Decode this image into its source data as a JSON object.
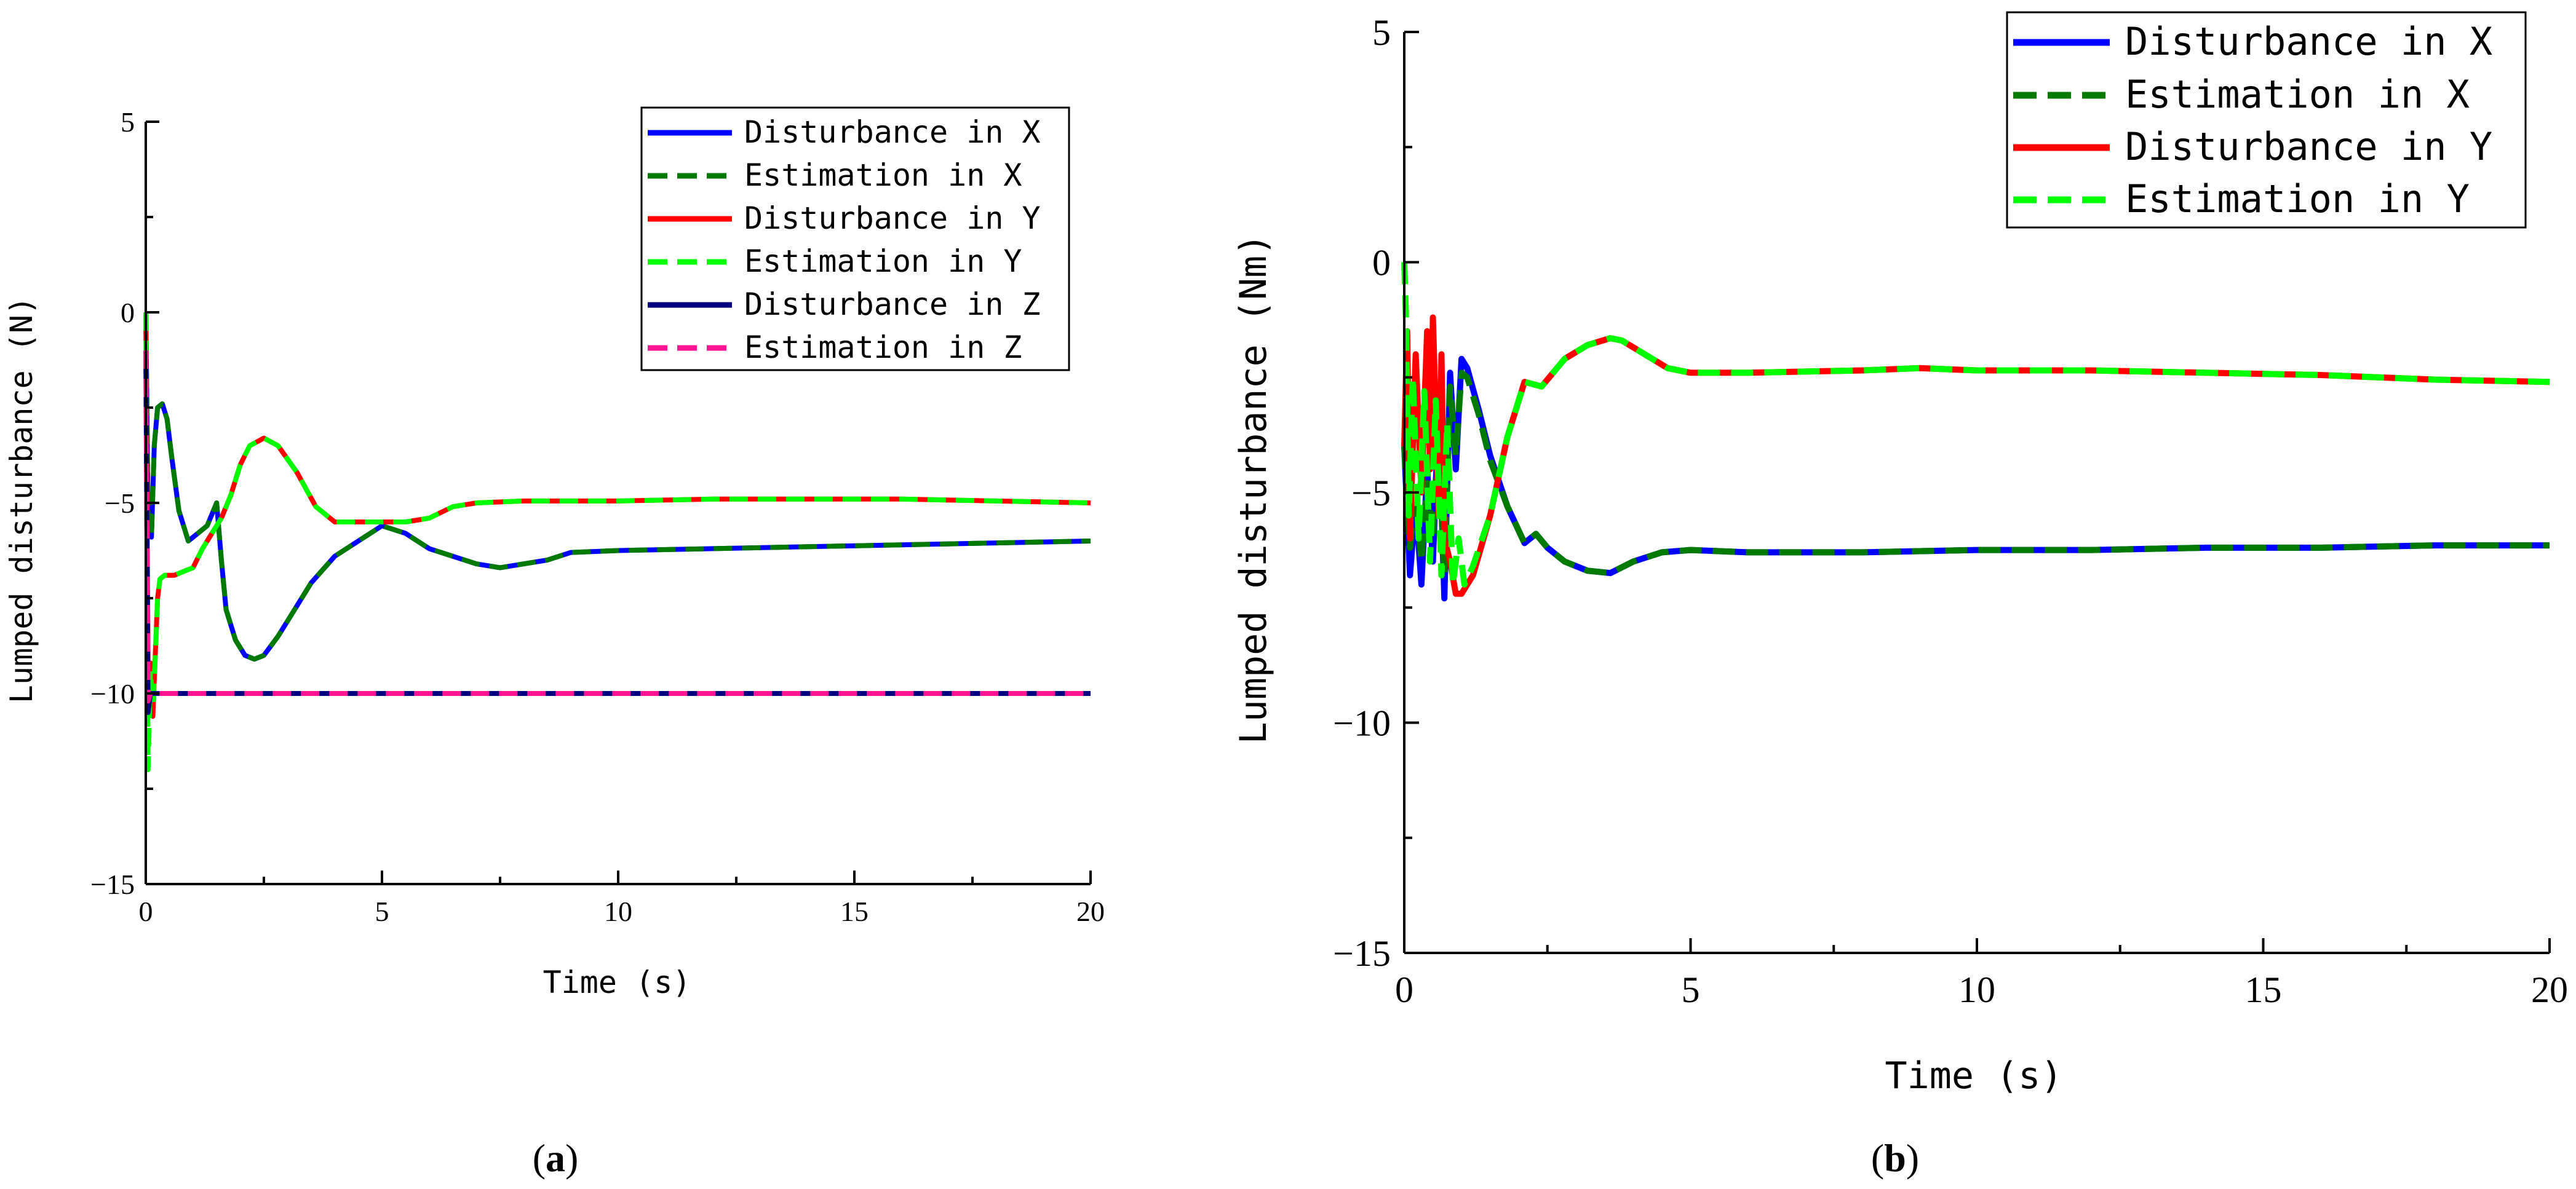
{
  "chart_data": [
    {
      "type": "line",
      "panel_label": "a",
      "xlabel": "Time (s)",
      "ylabel": "Lumped disturbance (N)",
      "xlim": [
        0,
        20
      ],
      "ylim": [
        -15,
        5
      ],
      "xticks": [
        0,
        5,
        10,
        15,
        20
      ],
      "yticks": [
        -15,
        -10,
        -5,
        0,
        5
      ],
      "xtick_labels": [
        "0",
        "5",
        "10",
        "15",
        "20"
      ],
      "ytick_labels": [
        "−15",
        "−10",
        "−5",
        "0",
        "5"
      ],
      "legend_position": "top-right",
      "series": [
        {
          "name": "Disturbance in X",
          "color": "#0000ff",
          "style": "solid",
          "x": [
            0,
            0.02,
            0.05,
            0.08,
            0.12,
            0.18,
            0.25,
            0.35,
            0.45,
            0.55,
            0.7,
            0.9,
            1.1,
            1.3,
            1.5,
            1.6,
            1.7,
            1.9,
            2.1,
            2.3,
            2.5,
            2.8,
            3.1,
            3.5,
            4.0,
            4.5,
            5.0,
            5.5,
            6.0,
            6.5,
            7.0,
            7.5,
            8.0,
            8.5,
            9.0,
            10,
            12,
            14,
            16,
            18,
            20
          ],
          "y": [
            0,
            -2,
            -5.5,
            -4.8,
            -5.9,
            -3.5,
            -2.5,
            -2.4,
            -2.8,
            -3.8,
            -5.2,
            -6.0,
            -5.8,
            -5.6,
            -5.0,
            -6.5,
            -7.8,
            -8.6,
            -9.0,
            -9.1,
            -9.0,
            -8.5,
            -7.9,
            -7.1,
            -6.4,
            -6.0,
            -5.6,
            -5.8,
            -6.2,
            -6.4,
            -6.6,
            -6.7,
            -6.6,
            -6.5,
            -6.3,
            -6.25,
            -6.2,
            -6.15,
            -6.1,
            -6.05,
            -6.0
          ]
        },
        {
          "name": "Estimation in X",
          "color": "#007a00",
          "style": "dashed",
          "x": [
            0,
            0.02,
            0.05,
            0.08,
            0.12,
            0.18,
            0.25,
            0.35,
            0.45,
            0.55,
            0.7,
            0.9,
            1.1,
            1.3,
            1.5,
            1.6,
            1.7,
            1.9,
            2.1,
            2.3,
            2.5,
            2.8,
            3.1,
            3.5,
            4.0,
            4.5,
            5.0,
            5.5,
            6.0,
            6.5,
            7.0,
            7.5,
            8.0,
            8.5,
            9.0,
            10,
            12,
            14,
            16,
            18,
            20
          ],
          "y": [
            0,
            -2,
            -5.5,
            -4.8,
            -5.9,
            -3.5,
            -2.5,
            -2.4,
            -2.8,
            -3.8,
            -5.2,
            -6.0,
            -5.8,
            -5.6,
            -5.0,
            -6.5,
            -7.8,
            -8.6,
            -9.0,
            -9.1,
            -9.0,
            -8.5,
            -7.9,
            -7.1,
            -6.4,
            -6.0,
            -5.6,
            -5.8,
            -6.2,
            -6.4,
            -6.6,
            -6.7,
            -6.6,
            -6.5,
            -6.3,
            -6.25,
            -6.2,
            -6.15,
            -6.1,
            -6.05,
            -6.0
          ]
        },
        {
          "name": "Disturbance in Y",
          "color": "#ff0000",
          "style": "solid",
          "x": [
            0,
            0.05,
            0.1,
            0.15,
            0.2,
            0.25,
            0.3,
            0.4,
            0.6,
            0.8,
            1.0,
            1.2,
            1.4,
            1.6,
            1.8,
            2.0,
            2.2,
            2.5,
            2.8,
            3.2,
            3.6,
            4.0,
            4.5,
            5.0,
            5.5,
            6.0,
            6.5,
            7.0,
            8.0,
            9.0,
            10,
            12,
            14,
            16,
            18,
            20
          ],
          "y": [
            0,
            -9.5,
            -9.2,
            -10.6,
            -9.0,
            -7.5,
            -7.0,
            -6.9,
            -6.9,
            -6.8,
            -6.7,
            -6.2,
            -5.8,
            -5.4,
            -4.8,
            -4.0,
            -3.5,
            -3.3,
            -3.5,
            -4.2,
            -5.1,
            -5.5,
            -5.5,
            -5.5,
            -5.5,
            -5.4,
            -5.1,
            -5.0,
            -4.95,
            -4.95,
            -4.95,
            -4.9,
            -4.9,
            -4.9,
            -4.95,
            -5.0
          ]
        },
        {
          "name": "Estimation in Y",
          "color": "#00ff00",
          "style": "dashed",
          "x": [
            0,
            0.05,
            0.1,
            0.15,
            0.2,
            0.25,
            0.3,
            0.4,
            0.6,
            0.8,
            1.0,
            1.2,
            1.4,
            1.6,
            1.8,
            2.0,
            2.2,
            2.5,
            2.8,
            3.2,
            3.6,
            4.0,
            4.5,
            5.0,
            5.5,
            6.0,
            6.5,
            7.0,
            8.0,
            9.0,
            10,
            12,
            14,
            16,
            18,
            20
          ],
          "y": [
            0,
            -12,
            -9.4,
            -10.3,
            -9.1,
            -7.5,
            -7.0,
            -6.9,
            -6.9,
            -6.8,
            -6.7,
            -6.2,
            -5.8,
            -5.4,
            -4.8,
            -4.0,
            -3.5,
            -3.3,
            -3.5,
            -4.2,
            -5.1,
            -5.5,
            -5.5,
            -5.5,
            -5.5,
            -5.4,
            -5.1,
            -5.0,
            -4.95,
            -4.95,
            -4.95,
            -4.9,
            -4.9,
            -4.9,
            -4.95,
            -5.0
          ]
        },
        {
          "name": "Disturbance in Z",
          "color": "#000080",
          "style": "solid",
          "x": [
            0,
            0.05,
            0.1,
            20
          ],
          "y": [
            -1,
            -10.5,
            -10,
            -10
          ]
        },
        {
          "name": "Estimation in Z",
          "color": "#ff1493",
          "style": "dashed",
          "x": [
            0,
            0.05,
            0.1,
            20
          ],
          "y": [
            -1,
            -10.2,
            -10,
            -10
          ]
        }
      ]
    },
    {
      "type": "line",
      "panel_label": "b",
      "xlabel": "Time (s)",
      "ylabel": "Lumped disturbance (Nm)",
      "xlim": [
        0,
        20
      ],
      "ylim": [
        -15,
        5
      ],
      "xticks": [
        0,
        5,
        10,
        15,
        20
      ],
      "yticks": [
        -15,
        -10,
        -5,
        0,
        5
      ],
      "xtick_labels": [
        "0",
        "5",
        "10",
        "15",
        "20"
      ],
      "ytick_labels": [
        "−15",
        "−10",
        "−5",
        "0",
        "5"
      ],
      "legend_position": "top-right",
      "series": [
        {
          "name": "Disturbance in X",
          "color": "#0000ff",
          "style": "solid",
          "x": [
            0,
            0.1,
            0.2,
            0.3,
            0.4,
            0.5,
            0.6,
            0.7,
            0.8,
            0.9,
            1.0,
            1.1,
            1.3,
            1.5,
            1.8,
            2.1,
            2.3,
            2.5,
            2.8,
            3.2,
            3.6,
            4.0,
            4.5,
            5.0,
            6,
            8,
            10,
            12,
            14,
            16,
            18,
            20
          ],
          "y": [
            -4,
            -6.8,
            -5.2,
            -7.0,
            -4.5,
            -6.5,
            -3.2,
            -7.3,
            -2.4,
            -4.5,
            -2.1,
            -2.3,
            -3.2,
            -4.2,
            -5.3,
            -6.1,
            -5.9,
            -6.2,
            -6.5,
            -6.7,
            -6.75,
            -6.5,
            -6.3,
            -6.25,
            -6.3,
            -6.3,
            -6.25,
            -6.25,
            -6.2,
            -6.2,
            -6.15,
            -6.15
          ]
        },
        {
          "name": "Estimation in X",
          "color": "#007a00",
          "style": "dashed",
          "x": [
            0,
            0.1,
            0.2,
            0.3,
            0.4,
            0.5,
            0.6,
            0.7,
            0.8,
            0.9,
            1.0,
            1.1,
            1.3,
            1.5,
            1.8,
            2.1,
            2.3,
            2.5,
            2.8,
            3.2,
            3.6,
            4.0,
            4.5,
            5.0,
            6,
            8,
            10,
            12,
            14,
            16,
            18,
            20
          ],
          "y": [
            -4,
            -6.2,
            -5.0,
            -6.5,
            -4.8,
            -6.0,
            -3.5,
            -6.8,
            -2.7,
            -4.2,
            -2.4,
            -2.5,
            -3.3,
            -4.3,
            -5.3,
            -6.1,
            -5.9,
            -6.2,
            -6.5,
            -6.7,
            -6.75,
            -6.5,
            -6.3,
            -6.25,
            -6.3,
            -6.3,
            -6.25,
            -6.25,
            -6.2,
            -6.2,
            -6.15,
            -6.15
          ]
        },
        {
          "name": "Disturbance in Y",
          "color": "#ff0000",
          "style": "solid",
          "x": [
            0,
            0.05,
            0.1,
            0.2,
            0.3,
            0.4,
            0.45,
            0.5,
            0.6,
            0.65,
            0.7,
            0.8,
            0.9,
            1.0,
            1.2,
            1.5,
            1.8,
            2.1,
            2.4,
            2.8,
            3.2,
            3.6,
            3.8,
            4.2,
            4.6,
            5.0,
            6,
            8,
            9,
            10,
            12,
            14,
            16,
            18,
            20
          ],
          "y": [
            -4,
            -1.5,
            -6.0,
            -2.0,
            -5.0,
            -1.5,
            -4.5,
            -1.2,
            -5.5,
            -2.0,
            -6.0,
            -6.5,
            -7.2,
            -7.2,
            -6.8,
            -5.5,
            -3.8,
            -2.6,
            -2.7,
            -2.1,
            -1.8,
            -1.65,
            -1.7,
            -2.0,
            -2.3,
            -2.4,
            -2.4,
            -2.35,
            -2.3,
            -2.35,
            -2.35,
            -2.4,
            -2.45,
            -2.55,
            -2.6
          ]
        },
        {
          "name": "Estimation in Y",
          "color": "#00ff00",
          "style": "dashed",
          "x": [
            0,
            0.03,
            0.08,
            0.15,
            0.25,
            0.35,
            0.45,
            0.55,
            0.65,
            0.75,
            0.85,
            0.95,
            1.05,
            1.2,
            1.5,
            1.8,
            2.1,
            2.4,
            2.8,
            3.2,
            3.6,
            3.8,
            4.2,
            4.6,
            5.0,
            6,
            8,
            9,
            10,
            12,
            14,
            16,
            18,
            20
          ],
          "y": [
            0,
            -1.2,
            -5.5,
            -2.5,
            -6.0,
            -2.8,
            -6.5,
            -3.0,
            -6.8,
            -3.5,
            -7.0,
            -6.0,
            -7.0,
            -6.6,
            -5.5,
            -3.8,
            -2.6,
            -2.7,
            -2.1,
            -1.8,
            -1.65,
            -1.7,
            -2.0,
            -2.3,
            -2.4,
            -2.4,
            -2.35,
            -2.3,
            -2.35,
            -2.35,
            -2.4,
            -2.45,
            -2.55,
            -2.6
          ]
        }
      ]
    }
  ]
}
